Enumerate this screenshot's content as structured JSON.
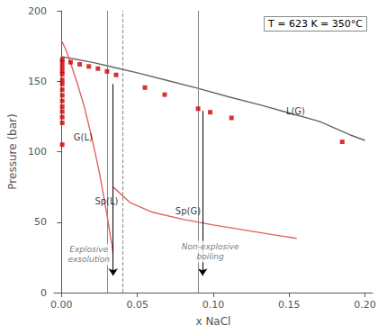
{
  "chart_data": {
    "type": "scatter",
    "title": "T = 623 K = 350°C",
    "x_label": "x NaCl",
    "y_label": "Pressure (bar)",
    "xlim": [
      -0.005,
      0.205
    ],
    "ylim": [
      0,
      200
    ],
    "xticks": [
      {
        "value": 0.0,
        "label": "0.00"
      },
      0.05,
      {
        "value": 0.1,
        "label": "0.10"
      },
      0.15,
      {
        "value": 0.2,
        "label": "0.20"
      }
    ],
    "yticks": [
      0,
      50,
      100,
      150,
      200
    ],
    "grid": false,
    "series": [
      {
        "type": "scatter",
        "color": "#cc0000",
        "marker": "square",
        "x": [
          0.0005,
          0.0005,
          0.0005,
          0.0005,
          0.0005,
          0.0005,
          0.0005,
          0.0005,
          0.0005,
          0.0005,
          0.0005,
          0.0005,
          0.0005,
          0.0005,
          0.0005,
          0.006,
          0.012,
          0.018,
          0.024,
          0.03,
          0.036,
          0.055,
          0.068,
          0.09,
          0.098,
          0.112,
          0.185
        ],
        "values": [
          165.5,
          163.5,
          160.5,
          157.5,
          155.0,
          151.0,
          148.0,
          144.0,
          140.0,
          136.0,
          132.0,
          128.5,
          124.5,
          120.5,
          105.0,
          163.5,
          162.0,
          160.5,
          159.0,
          157.0,
          154.5,
          145.5,
          140.5,
          130.5,
          128.0,
          124.0,
          107.0
        ]
      },
      {
        "type": "line",
        "color": "#666666",
        "x": [
          0.0,
          0.01,
          0.02,
          0.03,
          0.04,
          0.05,
          0.07,
          0.09,
          0.11,
          0.13,
          0.15,
          0.17,
          0.19,
          0.2
        ],
        "values": [
          167.5,
          165.5,
          163.5,
          161.0,
          158.5,
          156.0,
          150.5,
          145.0,
          139.0,
          133.5,
          127.5,
          121.5,
          112.0,
          108.0
        ]
      },
      {
        "type": "line",
        "color": "#e06060",
        "x": [
          0.0005,
          0.003,
          0.006,
          0.01,
          0.015,
          0.02,
          0.025,
          0.03,
          0.034
        ],
        "values": [
          178.0,
          172.0,
          163.0,
          150.0,
          132.0,
          110.0,
          85.0,
          55.0,
          28.0
        ]
      },
      {
        "type": "line",
        "color": "#e06060",
        "x": [
          0.034,
          0.045,
          0.06,
          0.08,
          0.1,
          0.12,
          0.14,
          0.155
        ],
        "values": [
          75.0,
          64.0,
          57.0,
          52.0,
          48.0,
          44.5,
          41.0,
          38.5
        ]
      }
    ],
    "vlines": [
      {
        "x": 0.034,
        "color": "#888888",
        "line_style": "solid"
      },
      {
        "x": 0.043,
        "color": "#888888",
        "line_style": "dashed"
      },
      {
        "x": 0.093,
        "color": "#888888",
        "line_style": "solid"
      }
    ],
    "arrows": [
      {
        "x": 0.034,
        "y_start": 148.0,
        "y_end": 12.0,
        "color": "#000000"
      },
      {
        "x": 0.093,
        "y_start": 129.0,
        "y_end": 12.0,
        "color": "#000000"
      }
    ],
    "line_labels": [
      {
        "x": 0.008,
        "y": 110.0,
        "text": "G(L)",
        "color": "#000000"
      },
      {
        "x": 0.022,
        "y": 65.0,
        "text": "Sp(L)",
        "color": "#000000"
      },
      {
        "x": 0.075,
        "y": 58.0,
        "text": "Sp(G)",
        "color": "#000000"
      },
      {
        "x": 0.148,
        "y": 129.0,
        "text": "L(G)",
        "color": "#000000"
      }
    ],
    "annotations": [
      {
        "x": 0.018,
        "y": 27.0,
        "text": "Explosive\nexsolution",
        "color": "#555555"
      },
      {
        "x": 0.098,
        "y": 29.0,
        "text": "Non-explosive\nboiling",
        "color": "#555555"
      }
    ]
  }
}
